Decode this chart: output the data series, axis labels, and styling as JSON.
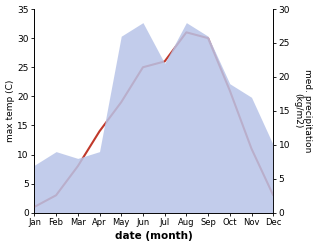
{
  "months": [
    "Jan",
    "Feb",
    "Mar",
    "Apr",
    "May",
    "Jun",
    "Jul",
    "Aug",
    "Sep",
    "Oct",
    "Nov",
    "Dec"
  ],
  "temperature": [
    1,
    3,
    8,
    14,
    19,
    25,
    26,
    31,
    30,
    21,
    11,
    3
  ],
  "precipitation": [
    7,
    9,
    8,
    9,
    26,
    28,
    22,
    28,
    26,
    19,
    17,
    10
  ],
  "temp_color": "#c0392b",
  "precip_fill_color": "#b8c4e8",
  "precip_fill_alpha": 0.85,
  "temp_ylim": [
    0,
    35
  ],
  "precip_ylim": [
    0,
    30
  ],
  "temp_yticks": [
    0,
    5,
    10,
    15,
    20,
    25,
    30,
    35
  ],
  "precip_yticks": [
    0,
    5,
    10,
    15,
    20,
    25,
    30
  ],
  "xlabel": "date (month)",
  "ylabel_left": "max temp (C)",
  "ylabel_right": "med. precipitation\n(kg/m2)",
  "bg_color": "#ffffff",
  "line_width": 1.5
}
